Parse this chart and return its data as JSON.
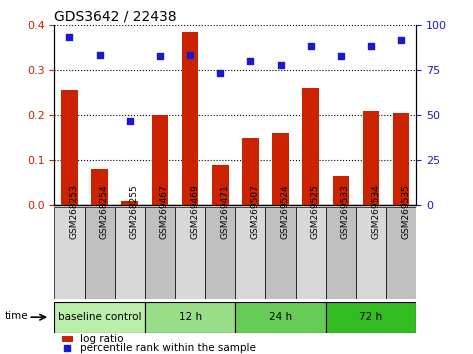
{
  "title": "GDS3642 / 22438",
  "samples": [
    "GSM268253",
    "GSM268254",
    "GSM268255",
    "GSM269467",
    "GSM269469",
    "GSM269471",
    "GSM269507",
    "GSM269524",
    "GSM269525",
    "GSM269533",
    "GSM269534",
    "GSM269535"
  ],
  "log_ratio": [
    0.255,
    0.08,
    0.01,
    0.2,
    0.385,
    0.09,
    0.15,
    0.16,
    0.26,
    0.065,
    0.21,
    0.205
  ],
  "percentile_rank_pct": [
    93.5,
    83.5,
    46.5,
    82.5,
    83.5,
    73.5,
    80.0,
    77.5,
    88.5,
    82.5,
    88.5,
    91.5
  ],
  "bar_color": "#cc2200",
  "dot_color": "#1a1acc",
  "ylim_left": [
    0,
    0.4
  ],
  "ylim_right": [
    0,
    100
  ],
  "yticks_left": [
    0,
    0.1,
    0.2,
    0.3,
    0.4
  ],
  "yticks_right": [
    0,
    25,
    50,
    75,
    100
  ],
  "groups": [
    {
      "label": "baseline control",
      "start": 0,
      "end": 3,
      "color": "#bbeeaa"
    },
    {
      "label": "12 h",
      "start": 3,
      "end": 6,
      "color": "#99dd88"
    },
    {
      "label": "24 h",
      "start": 6,
      "end": 9,
      "color": "#66cc55"
    },
    {
      "label": "72 h",
      "start": 9,
      "end": 12,
      "color": "#33bb22"
    }
  ],
  "cell_bg_light": "#d8d8d8",
  "cell_bg_dark": "#c0c0c0",
  "xlabel_rotation": -90,
  "bar_width": 0.55
}
